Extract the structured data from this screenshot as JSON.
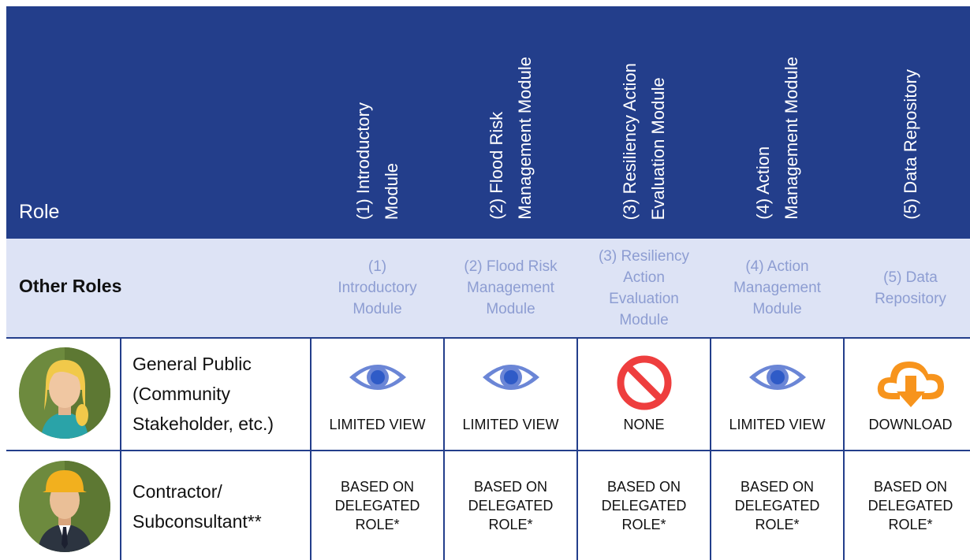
{
  "header": {
    "role": "Role",
    "modules": [
      [
        "(1) Introductory",
        "Module"
      ],
      [
        "(2) Flood Risk",
        "Management Module"
      ],
      [
        "(3) Resiliency Action",
        "Evaluation Module"
      ],
      [
        "(4) Action",
        "Management Module"
      ],
      [
        "(5) Data Repository"
      ]
    ]
  },
  "section": {
    "title": "Other Roles",
    "modules": [
      [
        "(1)",
        "Introductory",
        "Module"
      ],
      [
        "(2) Flood Risk",
        "Management",
        "Module"
      ],
      [
        "(3) Resiliency",
        "Action",
        "Evaluation",
        "Module"
      ],
      [
        "(4) Action",
        "Management",
        "Module"
      ],
      [
        "(5) Data",
        "Repository"
      ]
    ]
  },
  "rows": [
    {
      "role": [
        "General Public",
        "(Community",
        "Stakeholder, etc.)"
      ],
      "access": [
        "LIMITED VIEW",
        "LIMITED VIEW",
        "NONE",
        "LIMITED VIEW",
        "DOWNLOAD"
      ]
    },
    {
      "role": [
        "Contractor/",
        "Subconsultant**"
      ],
      "access": [
        [
          "BASED ON",
          "DELEGATED",
          "ROLE*"
        ],
        [
          "BASED ON",
          "DELEGATED",
          "ROLE*"
        ],
        [
          "BASED ON",
          "DELEGATED",
          "ROLE*"
        ],
        [
          "BASED ON",
          "DELEGATED",
          "ROLE*"
        ],
        [
          "BASED ON",
          "DELEGATED",
          "ROLE*"
        ]
      ]
    }
  ]
}
